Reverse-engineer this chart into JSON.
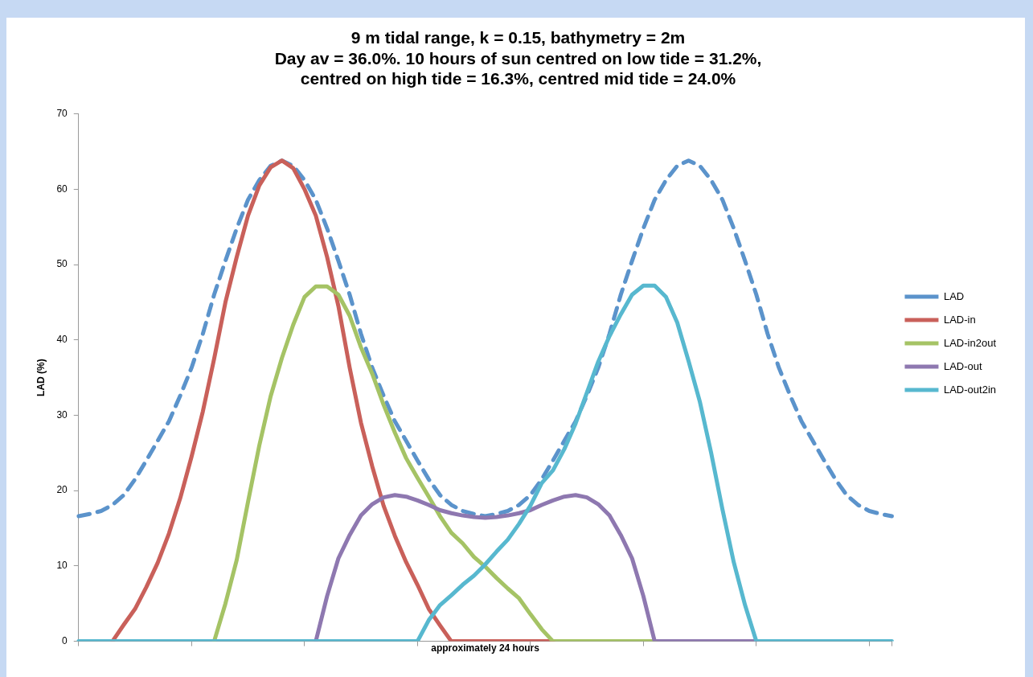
{
  "chart_data": {
    "type": "line",
    "title": "9 m tidal range, k = 0.15, bathymetry = 2m\nDay av = 36.0%. 10 hours of sun centred on low tide = 31.2%,\ncentred on high tide = 16.3%, centred mid tide = 24.0%",
    "xlabel": "approximately 24 hours",
    "ylabel": "LAD (%)",
    "categories": [
      null,
      null,
      null,
      null,
      null,
      null,
      null,
      null,
      null,
      null,
      null,
      null,
      null,
      null,
      null,
      null,
      null,
      null,
      null,
      null,
      null,
      null,
      null,
      null,
      null,
      null,
      null,
      null,
      null,
      null,
      null,
      null,
      null,
      null,
      null,
      null,
      null,
      null,
      null,
      null,
      null,
      null,
      null,
      null,
      null,
      null,
      null,
      null,
      null,
      null,
      null,
      null,
      null,
      null,
      null,
      null,
      null,
      null,
      null,
      null,
      null,
      null,
      null,
      null,
      null,
      null,
      null,
      null,
      null,
      null,
      null,
      null,
      null
    ],
    "series": [
      {
        "name": "LAD",
        "color": "#5b93cb",
        "line_style": "dashed",
        "values": [
          16.6,
          16.9,
          17.3,
          18.1,
          19.4,
          21.5,
          24,
          26.6,
          29.2,
          32.6,
          36.3,
          40.8,
          46,
          50.5,
          54.8,
          58.6,
          61.2,
          63.1,
          63.8,
          63.1,
          61.2,
          58.6,
          54.8,
          50.5,
          46,
          40.8,
          36.3,
          32.6,
          29.2,
          26.6,
          24,
          21.5,
          19.4,
          18.1,
          17.3,
          16.9,
          16.6,
          16.9,
          17.3,
          18.1,
          19.4,
          21.5,
          24,
          26.6,
          29.2,
          32.6,
          36.3,
          40.8,
          46,
          50.5,
          54.8,
          58.6,
          61.2,
          63.1,
          63.8,
          63.1,
          61.2,
          58.6,
          54.8,
          50.5,
          46,
          40.8,
          36.3,
          32.6,
          29.2,
          26.6,
          24,
          21.5,
          19.4,
          18.1,
          17.3,
          16.9,
          16.6
        ]
      },
      {
        "name": "LAD-in",
        "color": "#c9605a",
        "line_style": "solid",
        "values": [
          null,
          null,
          null,
          0,
          2.2,
          4.3,
          7.2,
          10.4,
          14.3,
          19,
          24.5,
          30.5,
          37.5,
          45,
          51,
          56.5,
          60.5,
          62.9,
          63.8,
          62.8,
          60,
          56.5,
          51,
          44.5,
          36.3,
          29,
          23.2,
          18,
          14,
          10.5,
          7.5,
          4.3,
          2.1,
          0,
          0,
          0,
          0,
          0,
          0,
          0,
          0,
          0,
          0,
          null,
          null,
          null,
          null,
          null,
          null,
          null,
          null,
          null,
          null,
          null,
          null,
          null,
          null,
          null,
          null,
          null,
          null,
          null,
          null,
          null,
          null,
          null,
          null,
          null,
          null,
          null,
          null,
          null,
          null
        ]
      },
      {
        "name": "LAD-in2out",
        "color": "#a5c365",
        "line_style": "solid",
        "values": [
          null,
          null,
          null,
          null,
          null,
          null,
          null,
          null,
          null,
          null,
          null,
          null,
          0,
          5,
          10.8,
          18.5,
          26,
          32.5,
          37.6,
          42,
          45.7,
          47.1,
          47.1,
          46,
          43.2,
          39,
          35.5,
          31.4,
          27.7,
          24.3,
          21.7,
          19.2,
          16.6,
          14.4,
          13,
          11.2,
          9.9,
          8.4,
          7,
          5.7,
          3.6,
          1.6,
          0,
          0,
          0,
          0,
          0,
          0,
          0,
          0,
          0,
          0,
          null,
          null,
          null,
          null,
          null,
          null,
          null,
          null,
          null,
          null,
          null,
          null,
          null,
          null,
          null,
          null,
          null,
          null,
          null,
          null,
          null
        ]
      },
      {
        "name": "LAD-out",
        "color": "#8e78b0",
        "line_style": "solid",
        "values": [
          null,
          null,
          null,
          null,
          null,
          null,
          null,
          null,
          null,
          null,
          null,
          null,
          null,
          null,
          null,
          null,
          null,
          null,
          null,
          null,
          null,
          0,
          6,
          11,
          14.1,
          16.7,
          18.2,
          19.1,
          19.4,
          19.2,
          18.7,
          18.1,
          17.4,
          17,
          16.7,
          16.5,
          16.4,
          16.5,
          16.7,
          17,
          17.4,
          18.1,
          18.7,
          19.2,
          19.4,
          19.1,
          18.2,
          16.7,
          14.1,
          11,
          6,
          0,
          0,
          0,
          0,
          0,
          0,
          0,
          0,
          0,
          0,
          null,
          null,
          null,
          null,
          null,
          null,
          null,
          null,
          null,
          null,
          null,
          null
        ]
      },
      {
        "name": "LAD-out2in",
        "color": "#57b8cf",
        "line_style": "solid",
        "values": [
          0,
          0,
          0,
          0,
          0,
          0,
          0,
          0,
          0,
          0,
          0,
          0,
          0,
          0,
          0,
          0,
          0,
          0,
          0,
          0,
          0,
          0,
          0,
          0,
          0,
          0,
          0,
          0,
          0,
          0,
          0,
          2.8,
          4.8,
          6.1,
          7.5,
          8.7,
          10.2,
          11.9,
          13.5,
          15.6,
          18,
          21,
          22.7,
          25.5,
          28.9,
          33,
          37.1,
          40.5,
          43.4,
          46,
          47.2,
          47.2,
          45.7,
          42.3,
          37.2,
          31.8,
          25,
          17.5,
          10.5,
          4.8,
          0,
          0,
          0,
          0,
          0,
          0,
          0,
          0,
          0,
          0,
          0,
          0,
          0
        ]
      }
    ],
    "ylim": [
      0,
      70
    ],
    "yticks": [
      0,
      10,
      20,
      30,
      40,
      50,
      60,
      70
    ],
    "grid": false,
    "legend": "right",
    "marker": "none",
    "tick_labels": "y"
  }
}
